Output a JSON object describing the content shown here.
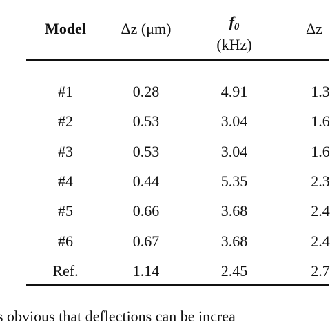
{
  "table": {
    "header": {
      "model": "Model",
      "dz": "Δz (μm)",
      "f0": {
        "symbol": "f",
        "subscript": "0",
        "unit": "(kHz)"
      },
      "dz2": "Δz"
    },
    "rows": [
      [
        "#1",
        "0.28",
        "4.91",
        "1.3"
      ],
      [
        "#2",
        "0.53",
        "3.04",
        "1.6"
      ],
      [
        "#3",
        "0.53",
        "3.04",
        "1.6"
      ],
      [
        "#4",
        "0.44",
        "5.35",
        "2.3"
      ],
      [
        "#5",
        "0.66",
        "3.68",
        "2.4"
      ],
      [
        "#6",
        "0.67",
        "3.68",
        "2.4"
      ],
      [
        "Ref.",
        "1.14",
        "2.45",
        "2.7"
      ]
    ]
  },
  "caption": "s obvious that deflections can be increa"
}
